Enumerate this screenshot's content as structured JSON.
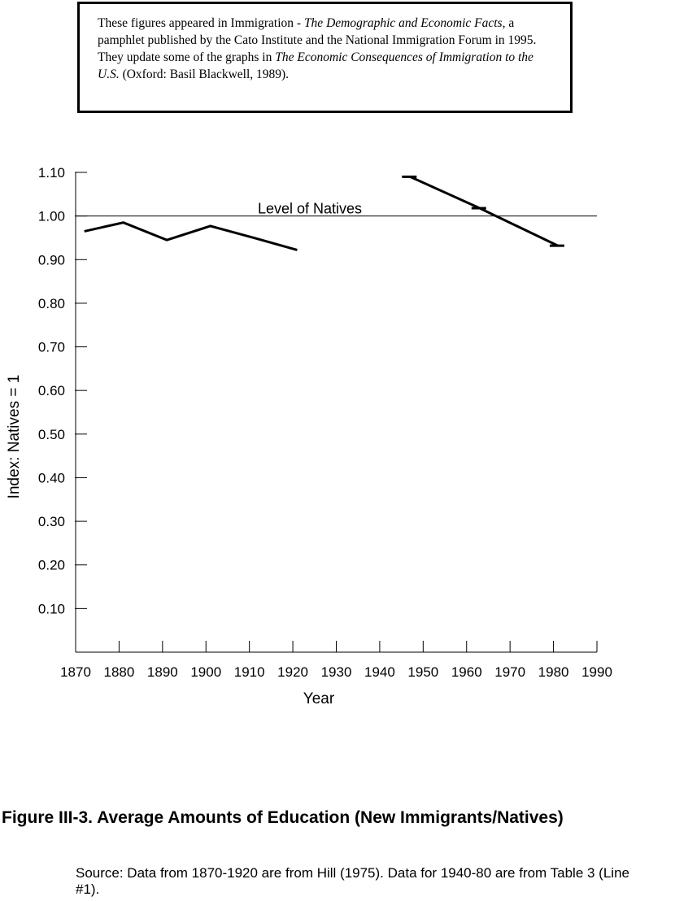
{
  "note": {
    "p1": "These figures appeared in Immigration - ",
    "p2": "The Demographic and Economic Facts",
    "p3": ", a pamphlet published by the Cato Institute and the National Immigration Forum in 1995. They update some of the graphs in ",
    "p4": "The Economic Consequences of Immigration to the U.S.",
    "p5": " (Oxford: Basil Blackwell, 1989)."
  },
  "chart_data": {
    "type": "line",
    "xlabel": "Year",
    "ylabel": "Index: Natives = 1",
    "xlim": [
      1870,
      1990
    ],
    "ylim": [
      0.0,
      1.1
    ],
    "x_ticks": [
      1870,
      1880,
      1890,
      1900,
      1910,
      1920,
      1930,
      1940,
      1950,
      1960,
      1970,
      1980,
      1990
    ],
    "y_ticks": [
      0.1,
      0.2,
      0.3,
      0.4,
      0.5,
      0.6,
      0.7,
      0.8,
      0.9,
      1.0,
      1.1
    ],
    "y_tick_labels": [
      "0.10",
      "0.20",
      "0.30",
      "0.40",
      "0.50",
      "0.60",
      "0.70",
      "0.80",
      "0.90",
      "1.00",
      "1.10"
    ],
    "reference_line": {
      "y": 1.0,
      "label": "Level of Natives"
    },
    "series": [
      {
        "x": [
          1872,
          1881,
          1891,
          1901,
          1911,
          1921
        ],
        "y": [
          0.965,
          0.985,
          0.945,
          0.977,
          0.95,
          0.922
        ]
      },
      {
        "x": [
          1947,
          1963,
          1981
        ],
        "y": [
          1.09,
          1.018,
          0.932
        ]
      }
    ],
    "grid": false
  },
  "caption": "Figure III-3.  Average Amounts of Education (New Immigrants/Natives)",
  "source": "Source: Data from 1870-1920 are from Hill (1975). Data for 1940-80 are from Table 3 (Line #1)."
}
